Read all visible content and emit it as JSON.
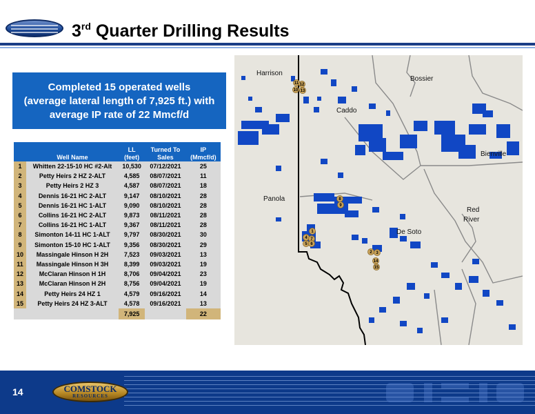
{
  "header": {
    "title_prefix": "3",
    "title_sup": "rd",
    "title_rest": " Quarter Drilling Results"
  },
  "summary": {
    "line1": "Completed 15 operated wells",
    "line2": "(average lateral length of 7,925 ft.) with",
    "line3": "average IP rate of 22 Mmcf/d"
  },
  "table": {
    "headers": {
      "well": "Well Name",
      "ll_top": "LL",
      "ll_bottom": "(feet)",
      "sales_top": "Turned To",
      "sales_bottom": "Sales",
      "ip_top": "IP",
      "ip_bottom": "(Mmcf/d)"
    },
    "rows": [
      {
        "n": "1",
        "name": "Whitten 22-15-10 HC #2-Alt",
        "ll": "10,530",
        "date": "07/12/2021",
        "ip": "25"
      },
      {
        "n": "2",
        "name": "Petty Heirs 2 HZ 2-ALT",
        "ll": "4,585",
        "date": "08/07/2021",
        "ip": "11"
      },
      {
        "n": "3",
        "name": "Petty Heirs 2 HZ 3",
        "ll": "4,587",
        "date": "08/07/2021",
        "ip": "18"
      },
      {
        "n": "4",
        "name": "Dennis 16-21 HC 2-ALT",
        "ll": "9,147",
        "date": "08/10/2021",
        "ip": "28"
      },
      {
        "n": "5",
        "name": "Dennis 16-21 HC 1-ALT",
        "ll": "9,090",
        "date": "08/10/2021",
        "ip": "28"
      },
      {
        "n": "6",
        "name": "Collins 16-21 HC 2-ALT",
        "ll": "9,873",
        "date": "08/11/2021",
        "ip": "28"
      },
      {
        "n": "7",
        "name": "Collins 16-21 HC 1-ALT",
        "ll": "9,367",
        "date": "08/11/2021",
        "ip": "28"
      },
      {
        "n": "8",
        "name": "Simonton 14-11 HC 1-ALT",
        "ll": "9,797",
        "date": "08/30/2021",
        "ip": "30"
      },
      {
        "n": "9",
        "name": "Simonton 15-10 HC 1-ALT",
        "ll": "9,356",
        "date": "08/30/2021",
        "ip": "29"
      },
      {
        "n": "10",
        "name": "Massingale Hinson H 2H",
        "ll": "7,523",
        "date": "09/03/2021",
        "ip": "13"
      },
      {
        "n": "11",
        "name": "Massingale Hinson H 3H",
        "ll": "8,399",
        "date": "09/03/2021",
        "ip": "19"
      },
      {
        "n": "12",
        "name": "McClaran Hinson H 1H",
        "ll": "8,706",
        "date": "09/04/2021",
        "ip": "23"
      },
      {
        "n": "13",
        "name": "McClaran Hinson H 2H",
        "ll": "8,756",
        "date": "09/04/2021",
        "ip": "19"
      },
      {
        "n": "14",
        "name": "Petty Heirs 24 HZ 1",
        "ll": "4,579",
        "date": "09/16/2021",
        "ip": "14"
      },
      {
        "n": "15",
        "name": "Petty Heirs 24 HZ 3-ALT",
        "ll": "4,578",
        "date": "09/16/2021",
        "ip": "13"
      }
    ],
    "totals": {
      "ll": "7,925",
      "ip": "22"
    }
  },
  "map": {
    "labels": {
      "harrison": "Harrison",
      "bossier": "Bossier",
      "caddo": "Caddo",
      "bienville": "Bienville",
      "panola": "Panola",
      "red_river_1": "Red",
      "red_river_2": "River",
      "de_soto": "De Soto"
    },
    "markers": [
      "11",
      "12",
      "10",
      "13",
      "8",
      "9",
      "1",
      "4",
      "7",
      "5",
      "6",
      "2",
      "3",
      "14",
      "15"
    ],
    "colors": {
      "acreage": "#1147c4",
      "marker": "#c9a35a",
      "background": "#e7e5de"
    }
  },
  "footer": {
    "page_number": "14",
    "logo_line1": "COMSTOCK",
    "logo_line2": "RESOURCES"
  },
  "colors": {
    "accent": "#1565c0",
    "navy": "#0d3a8a",
    "gold": "#d1b57a",
    "row_bg": "#d9d9d9"
  }
}
